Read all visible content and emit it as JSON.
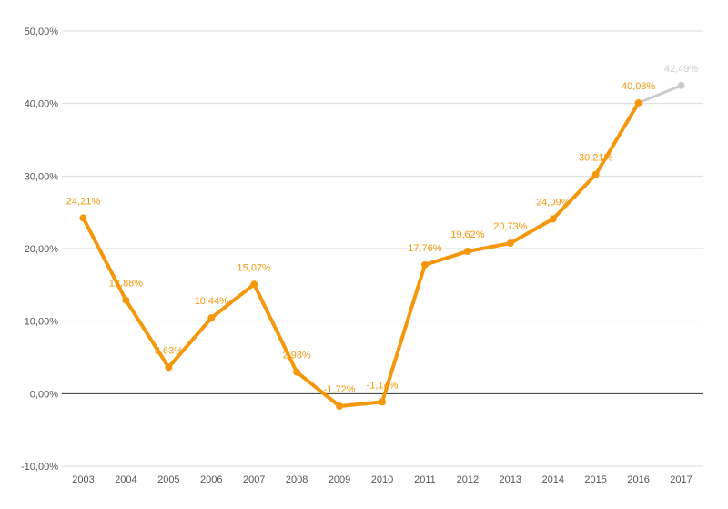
{
  "chart_data": {
    "type": "line",
    "title": "",
    "xlabel": "",
    "ylabel": "",
    "categories": [
      "2003",
      "2004",
      "2005",
      "2006",
      "2007",
      "2008",
      "2009",
      "2010",
      "2011",
      "2012",
      "2013",
      "2014",
      "2015",
      "2016",
      "2017"
    ],
    "series": [
      {
        "values": [
          24.21,
          12.88,
          3.63,
          10.44,
          15.07,
          2.98,
          -1.72,
          -1.14,
          17.76,
          19.62,
          20.73,
          24.09,
          30.21,
          40.08,
          42.49
        ],
        "labels": [
          "24,21%",
          "12,88%",
          "3,63%",
          "10,44%",
          "15,07%",
          "2,98%",
          "-1,72%",
          "-1,14%",
          "17,76%",
          "19,62%",
          "20,73%",
          "24,09%",
          "30,21%",
          "40,08%",
          "42,49%"
        ],
        "color": "#f5970b",
        "last_point_color": "#cccccc"
      }
    ],
    "ylim": [
      -10,
      50
    ],
    "yticks": [
      -10,
      0,
      10,
      20,
      30,
      40,
      50
    ],
    "ytick_labels": [
      "-10,00%",
      "0,00%",
      "10,00%",
      "20,00%",
      "30,00%",
      "40,00%",
      "50,00%"
    ],
    "grid": true,
    "legend": "none"
  }
}
